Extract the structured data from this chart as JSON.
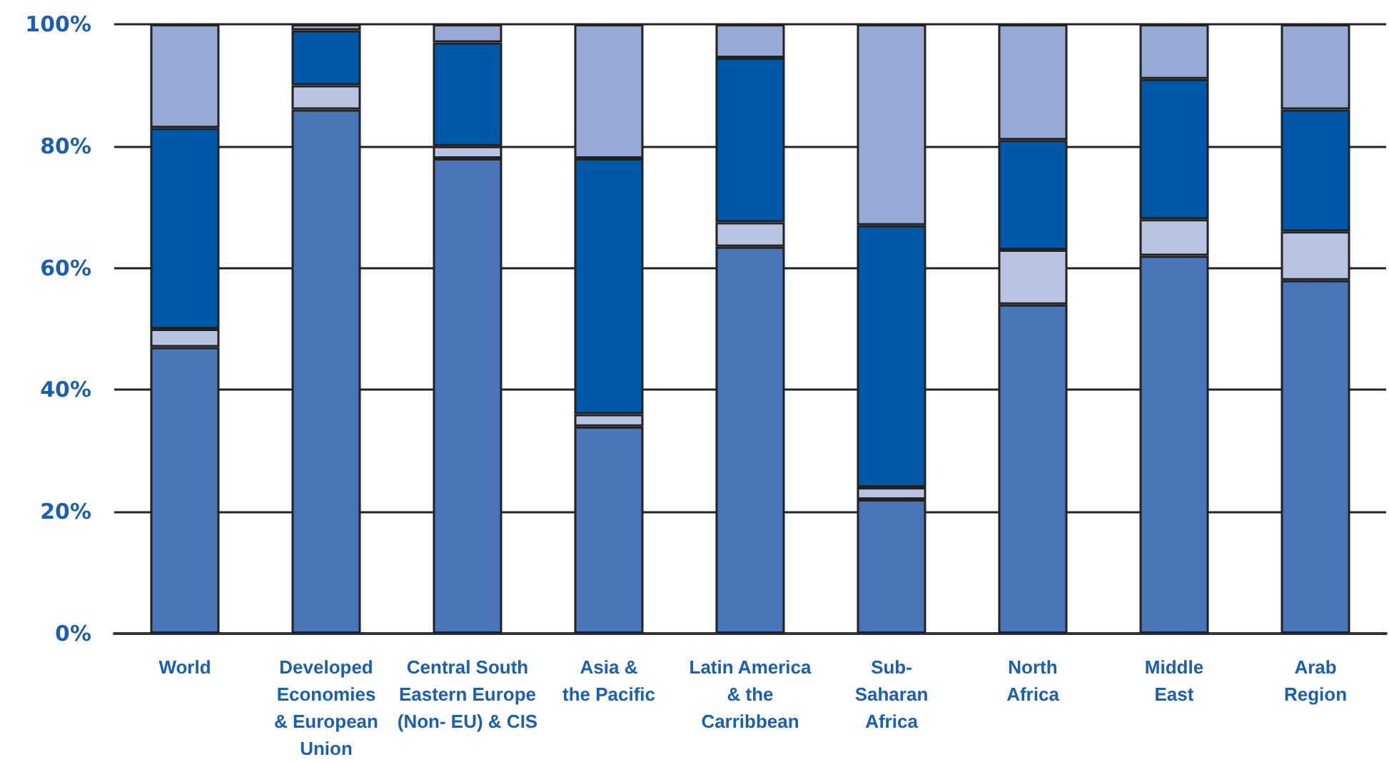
{
  "chart_data": {
    "type": "bar",
    "stacked": true,
    "categories": [
      "World",
      "Developed\nEconomies\n& European\nUnion",
      "Central South\nEastern Europe\n(Non- EU) & CIS",
      "Asia &\nthe Pacific",
      "Latin America\n& the\nCarribbean",
      "Sub-\nSaharan\nAfrica",
      "North\nAfrica",
      "Middle\nEast",
      "Arab\nRegion"
    ],
    "series": [
      {
        "color": "#4a76b9",
        "values": [
          47,
          86,
          78,
          34,
          63.5,
          22,
          54,
          62,
          58
        ]
      },
      {
        "color": "#b9c3e2",
        "values": [
          3,
          4,
          2,
          2,
          4,
          2,
          9,
          6,
          8
        ]
      },
      {
        "color": "#0058a8",
        "values": [
          33,
          9,
          17,
          42,
          27,
          43,
          18,
          23,
          20
        ]
      },
      {
        "color": "#97a9d4",
        "values": [
          17,
          1,
          3,
          22,
          5.5,
          33,
          19,
          9,
          14
        ]
      }
    ],
    "ylim": [
      0,
      100
    ],
    "yticks": [
      {
        "value": 0,
        "label": "0%"
      },
      {
        "value": 20,
        "label": "20%"
      },
      {
        "value": 40,
        "label": "40%"
      },
      {
        "value": 60,
        "label": "60%"
      },
      {
        "value": 80,
        "label": "80%"
      },
      {
        "value": 100,
        "label": "100%"
      }
    ],
    "grid": "y"
  }
}
